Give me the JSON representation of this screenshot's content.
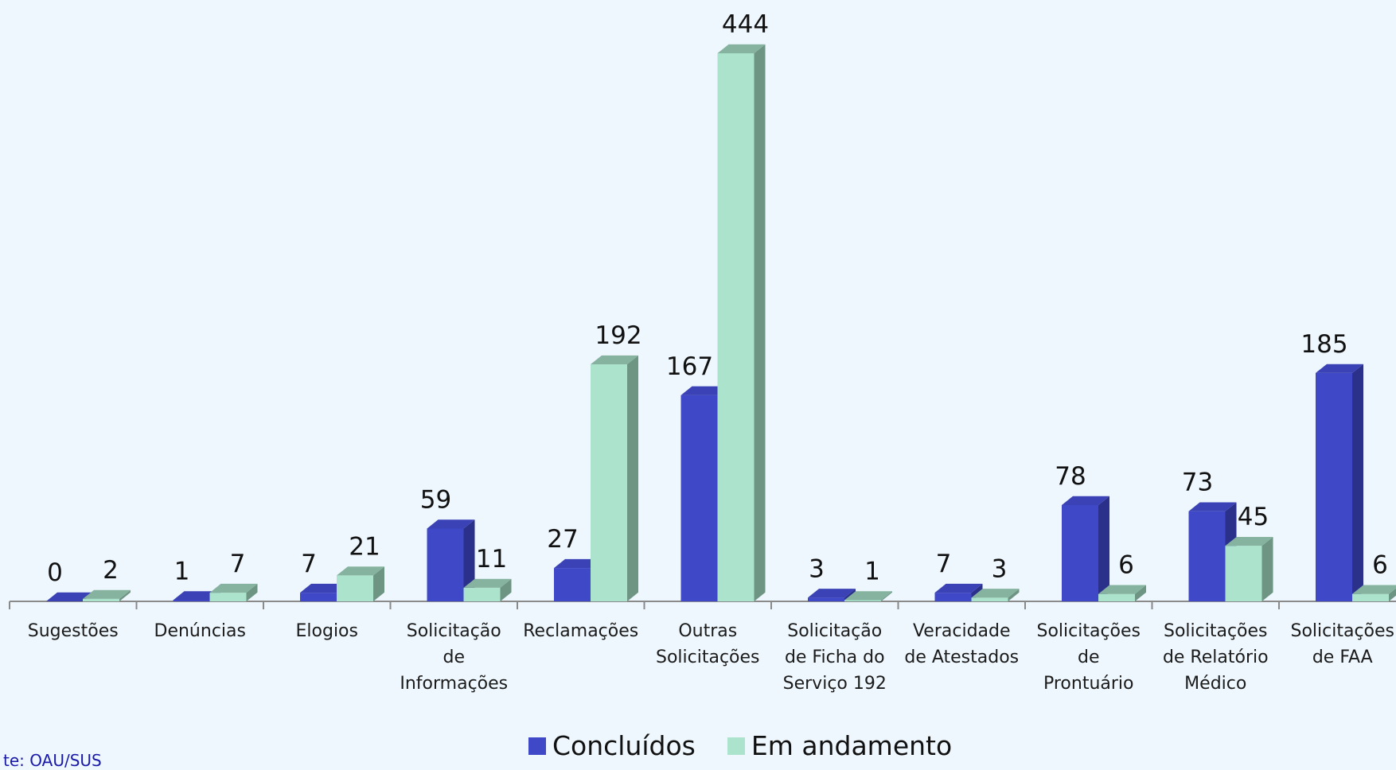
{
  "chart_data": {
    "type": "bar",
    "title": "",
    "xlabel": "",
    "ylabel": "",
    "ylim": [
      0,
      444
    ],
    "grid": false,
    "legend_position": "bottom",
    "categories": [
      "Sugestões",
      "Denúncias",
      "Elogios",
      "Solicitação de Informações",
      "Reclamações",
      "Outras Solicitações",
      "Solicitação de Ficha do Serviço 192",
      "Veracidade de Atestados",
      "Solicitações de Prontuário",
      "Solicitações de Relatório Médico",
      "Solicitações de FAA"
    ],
    "category_lines": [
      [
        "Sugestões"
      ],
      [
        "Denúncias"
      ],
      [
        "Elogios"
      ],
      [
        "Solicitação",
        "de",
        "Informações"
      ],
      [
        "Reclamações"
      ],
      [
        "Outras",
        "Solicitações"
      ],
      [
        "Solicitação",
        "de Ficha do",
        "Serviço 192"
      ],
      [
        "Veracidade",
        "de Atestados"
      ],
      [
        "Solicitações",
        "de",
        "Prontuário"
      ],
      [
        "Solicitações",
        "de Relatório",
        "Médico"
      ],
      [
        "Solicitações",
        "de FAA"
      ]
    ],
    "series": [
      {
        "name": "Concluídos",
        "color": "#3f48c6",
        "side_color": "#2b318a",
        "top_color": "#3a42b5",
        "values": [
          0,
          1,
          7,
          59,
          27,
          167,
          3,
          7,
          78,
          73,
          185
        ]
      },
      {
        "name": "Em andamento",
        "color": "#abe3cc",
        "side_color": "#6e9584",
        "top_color": "#86b39f",
        "values": [
          2,
          7,
          21,
          11,
          192,
          444,
          1,
          3,
          6,
          45,
          6
        ]
      }
    ]
  },
  "source_text": "te: OAU/SUS",
  "colors": {
    "background": "#eef7fd",
    "axis": "#8a8a8a"
  }
}
